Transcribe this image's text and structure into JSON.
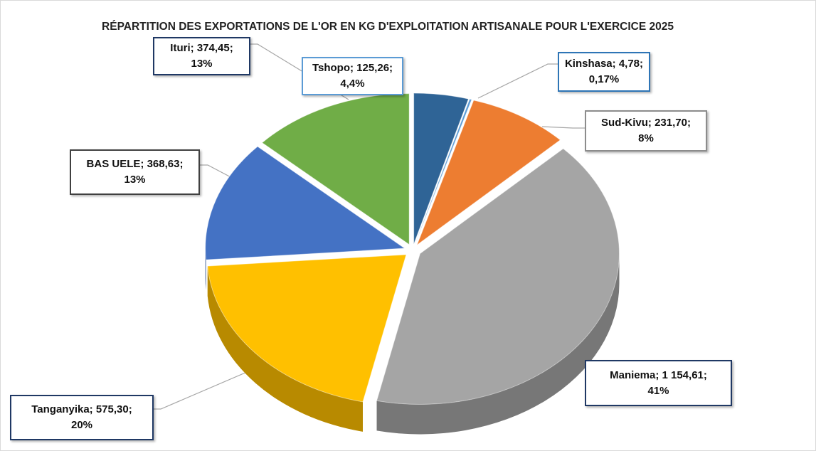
{
  "chart_data": {
    "type": "pie",
    "title": "RÉPARTITION DES EXPORTATIONS DE L'OR EN KG D'EXPLOITATION ARTISANALE POUR L'EXERCICE 2025",
    "categories": [
      "Tshopo",
      "Kinshasa",
      "Sud-Kivu",
      "Maniema",
      "Tanganyika",
      "BAS UELE",
      "Ituri"
    ],
    "values": [
      125.26,
      4.78,
      231.7,
      1154.61,
      575.3,
      368.63,
      374.45
    ],
    "value_labels": [
      "125,26",
      "4,78",
      "231,70",
      "1 154,61",
      "575,30",
      "368,63",
      "374,45"
    ],
    "percentages": [
      4.4,
      0.17,
      8,
      41,
      20,
      13,
      13
    ],
    "percent_labels": [
      "4,4%",
      "0,17%",
      "8%",
      "41%",
      "20%",
      "13%",
      "13%"
    ],
    "label_separator": "; ",
    "colors": [
      "#2f6496",
      "#5b9bd5",
      "#ed7d31",
      "#a5a5a5",
      "#ffc000",
      "#4472c4",
      "#70ad47"
    ]
  }
}
